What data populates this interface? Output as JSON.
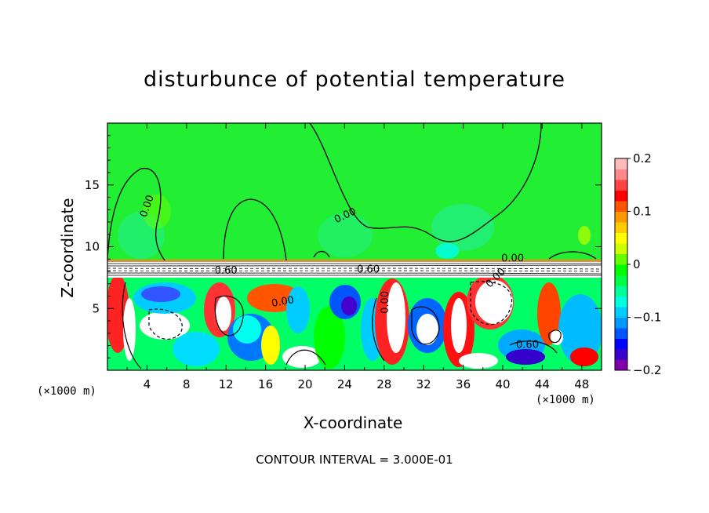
{
  "chart_data": {
    "type": "heatmap",
    "title": "disturbunce of potential temperature",
    "xlabel": "X-coordinate",
    "ylabel": "Z-coordinate",
    "x_unit": "(×1000 m)",
    "y_unit": "(×1000 m)",
    "xlim": [
      0,
      50
    ],
    "ylim": [
      0,
      20
    ],
    "x_ticks": [
      4,
      8,
      12,
      16,
      20,
      24,
      28,
      32,
      36,
      40,
      44,
      48
    ],
    "y_ticks": [
      5,
      10,
      15
    ],
    "colorbar": {
      "min": -0.2,
      "max": 0.2,
      "ticks": [
        0.2,
        0.1,
        0,
        -0.1,
        -0.2
      ],
      "tick_labels": [
        "0.2",
        "0.1",
        "0",
        "−0.1",
        "−0.2"
      ],
      "colors": [
        "#7f00aa",
        "#3a00cc",
        "#0000ff",
        "#0055ff",
        "#0099ff",
        "#00ccff",
        "#00ffdd",
        "#00ff99",
        "#00ff44",
        "#00ff00",
        "#66ff00",
        "#ccff00",
        "#ffff00",
        "#ffcc00",
        "#ff9900",
        "#ff5500",
        "#ff0000",
        "#ff4444",
        "#ff8888",
        "#ffbbbb"
      ]
    },
    "contour_labels": [
      "0.00",
      "0.00",
      "0.00",
      "0.00",
      "0.60",
      "0.60",
      "0.60",
      "0.00",
      "0.00"
    ],
    "annotation": "CONTOUR INTERVAL =  3.000E-01"
  }
}
